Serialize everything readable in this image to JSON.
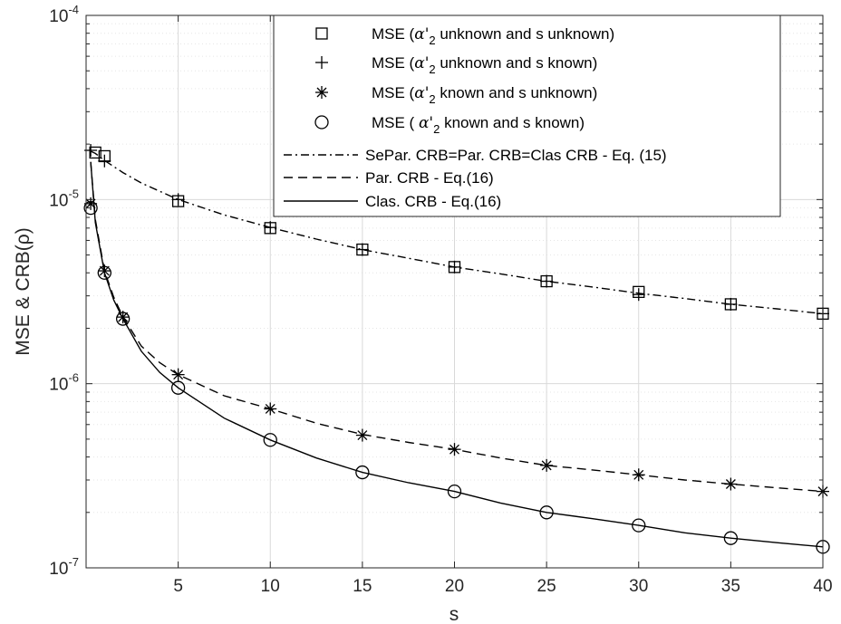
{
  "chart_data": {
    "type": "line",
    "xlabel": "s",
    "ylabel": "MSE & CRB(ρ)",
    "xlim": [
      0,
      40
    ],
    "ylim": [
      1e-07,
      0.0001
    ],
    "yscale": "log",
    "grid": true,
    "minor_grid": true,
    "legend_placement": "top-right",
    "x_ticks": [
      5,
      10,
      15,
      20,
      25,
      30,
      35,
      40
    ],
    "x_tick_labels": [
      "5",
      "10",
      "15",
      "20",
      "25",
      "30",
      "35",
      "40"
    ],
    "y_ticks": [
      {
        "value": 1e-07,
        "base": "10",
        "exp": "-7"
      },
      {
        "value": 1e-06,
        "base": "10",
        "exp": "-6"
      },
      {
        "value": 1e-05,
        "base": "10",
        "exp": "-5"
      },
      {
        "value": 0.0001,
        "base": "10",
        "exp": "-4"
      }
    ],
    "series": [
      {
        "name": "MSE (α'₂ unknown and s unknown)",
        "label_prefix": "MSE (",
        "label_alpha": "α'",
        "label_sub": "2",
        "label_suffix": " unknown and s unknown)",
        "kind": "markers",
        "marker": "square",
        "x": [
          0.5,
          1,
          5,
          10,
          15,
          20,
          25,
          30,
          35,
          40
        ],
        "y": [
          1.8e-05,
          1.72e-05,
          9.8e-06,
          7e-06,
          5.35e-06,
          4.3e-06,
          3.6e-06,
          3.15e-06,
          2.7e-06,
          2.4e-06
        ]
      },
      {
        "name": "MSE (α'₂ unknown and s known)",
        "label_prefix": "MSE (",
        "label_alpha": "α'",
        "label_sub": "2",
        "label_suffix": " unknown and s known)",
        "kind": "markers",
        "marker": "plus",
        "x": [
          0.25,
          1,
          5,
          10,
          15,
          20,
          25,
          30,
          35,
          40
        ],
        "y": [
          1.85e-05,
          1.62e-05,
          1e-05,
          7.05e-06,
          5.35e-06,
          4.3e-06,
          3.6e-06,
          3.05e-06,
          2.7e-06,
          2.4e-06
        ]
      },
      {
        "name": "MSE (α'₂ known and s unknown)",
        "label_prefix": "MSE (",
        "label_alpha": "α'",
        "label_sub": "2",
        "label_suffix": " known and s unknown)",
        "kind": "markers",
        "marker": "asterisk",
        "x": [
          0.25,
          1,
          2,
          5,
          10,
          15,
          20,
          25,
          30,
          35,
          40
        ],
        "y": [
          9.5e-06,
          4.1e-06,
          2.3e-06,
          1.12e-06,
          7.3e-07,
          5.25e-07,
          4.4e-07,
          3.6e-07,
          3.2e-07,
          2.85e-07,
          2.6e-07
        ]
      },
      {
        "name": "MSE ( α'₂ known and s known)",
        "label_prefix": "MSE ( ",
        "label_alpha": "α'",
        "label_sub": "2",
        "label_suffix": " known and s known)",
        "kind": "markers",
        "marker": "circle",
        "x": [
          0.25,
          1,
          2,
          5,
          10,
          15,
          20,
          25,
          30,
          35,
          40
        ],
        "y": [
          9e-06,
          4e-06,
          2.25e-06,
          9.5e-07,
          4.95e-07,
          3.3e-07,
          2.6e-07,
          2e-07,
          1.7e-07,
          1.45e-07,
          1.3e-07
        ]
      },
      {
        "name": "SePar. CRB=Par. CRB=Clas CRB - Eq. (15)",
        "kind": "line",
        "dash": "dashdot",
        "x": [
          0.25,
          0.5,
          1,
          2,
          3,
          5,
          7.5,
          10,
          12.5,
          15,
          17.5,
          20,
          22.5,
          25,
          27.5,
          30,
          32.5,
          35,
          37.5,
          40
        ],
        "y": [
          1.83e-05,
          1.78e-05,
          1.63e-05,
          1.4e-05,
          1.23e-05,
          1e-05,
          8.25e-06,
          7.05e-06,
          6.1e-06,
          5.35e-06,
          4.8e-06,
          4.3e-06,
          3.95e-06,
          3.6e-06,
          3.35e-06,
          3.1e-06,
          2.9e-06,
          2.7e-06,
          2.55e-06,
          2.4e-06
        ]
      },
      {
        "name": "Par. CRB - Eq.(16)",
        "kind": "line",
        "dash": "dashed",
        "x": [
          0.25,
          0.5,
          1,
          1.5,
          2,
          3,
          4,
          5,
          7.5,
          10,
          12.5,
          15,
          17.5,
          20,
          22.5,
          25,
          27.5,
          30,
          32.5,
          35,
          37.5,
          40
        ],
        "y": [
          1.6e-05,
          7.8e-06,
          4.1e-06,
          2.95e-06,
          2.3e-06,
          1.6e-06,
          1.3e-06,
          1.12e-06,
          8.6e-07,
          7.3e-07,
          6.1e-07,
          5.3e-07,
          4.8e-07,
          4.4e-07,
          3.95e-07,
          3.6e-07,
          3.4e-07,
          3.2e-07,
          3e-07,
          2.85e-07,
          2.72e-07,
          2.6e-07
        ]
      },
      {
        "name": "Clas. CRB - Eq.(16)",
        "kind": "line",
        "dash": "solid",
        "x": [
          0.25,
          0.5,
          1,
          1.5,
          2,
          3,
          4,
          5,
          7.5,
          10,
          12.5,
          15,
          17.5,
          20,
          22.5,
          25,
          27.5,
          30,
          32.5,
          35,
          37.5,
          40
        ],
        "y": [
          1.6e-05,
          7.5e-06,
          4e-06,
          2.85e-06,
          2.25e-06,
          1.5e-06,
          1.15e-06,
          9.5e-07,
          6.5e-07,
          4.95e-07,
          3.95e-07,
          3.3e-07,
          2.9e-07,
          2.6e-07,
          2.25e-07,
          2e-07,
          1.85e-07,
          1.7e-07,
          1.55e-07,
          1.45e-07,
          1.37e-07,
          1.3e-07
        ]
      }
    ]
  },
  "colors": {
    "axis": "#262626",
    "grid_major": "#d9d9d9",
    "grid_minor": "#e6e6e6",
    "series": "#000000",
    "background": "#ffffff"
  }
}
